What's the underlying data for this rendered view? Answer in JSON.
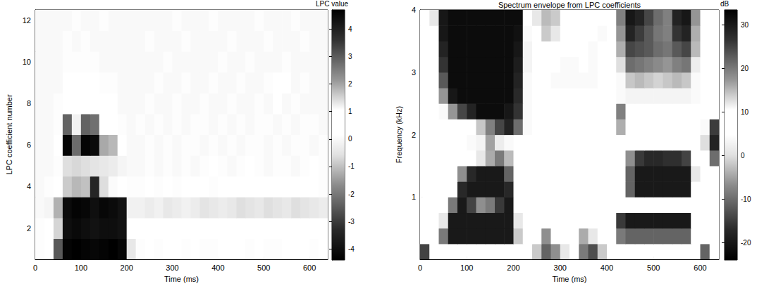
{
  "chart_data": [
    {
      "type": "heatmap",
      "x_label": "Time (ms)",
      "y_label": "LPC coefficient number",
      "xlim": [
        0,
        640
      ],
      "xticks": [
        0,
        100,
        200,
        300,
        400,
        500,
        600
      ],
      "ylim": [
        0.5,
        12.5
      ],
      "yticks": [
        2,
        4,
        6,
        8,
        10,
        12
      ],
      "x_edges": [
        0,
        20,
        40,
        60,
        80,
        100,
        120,
        140,
        160,
        180,
        200,
        220,
        240,
        260,
        280,
        300,
        320,
        340,
        360,
        380,
        400,
        420,
        440,
        460,
        480,
        500,
        520,
        540,
        560,
        580,
        600,
        620,
        640
      ],
      "y_edges": [
        0.5,
        1.5,
        2.5,
        3.5,
        4.5,
        5.5,
        6.5,
        7.5,
        8.5,
        9.5,
        10.5,
        11.5,
        12.5
      ],
      "cells": [
        [
          0.1,
          0.2,
          -2.5,
          -4.3,
          -4.4,
          -4.3,
          -4.2,
          -4.3,
          -4.4,
          -4.2,
          -0.4,
          0.1,
          0.2,
          0.1,
          0.3,
          0.2,
          0.1,
          0.2,
          0.1,
          0.1,
          0.2,
          0.3,
          0.2,
          0.1,
          0.2,
          0.1,
          0.1,
          0.2,
          0.3,
          0.2,
          0.1,
          0.2
        ],
        [
          0.1,
          0.3,
          1.5,
          4.4,
          4.5,
          4.4,
          4.3,
          4.4,
          4.4,
          4.3,
          0.5,
          0.2,
          0.3,
          0.4,
          0.2,
          0.5,
          0.3,
          0.4,
          0.6,
          0.5,
          0.3,
          0.4,
          0.5,
          0.6,
          0.4,
          0.5,
          0.6,
          0.5,
          0.4,
          0.6,
          0.5,
          0.4
        ],
        [
          0,
          -0.1,
          -1.2,
          -4.1,
          -4.3,
          -4.2,
          -4.0,
          -4.2,
          -4.1,
          -3.9,
          -0.2,
          -0.2,
          -0.3,
          -0.2,
          -0.4,
          -0.3,
          -0.2,
          -0.3,
          -0.5,
          -0.4,
          -0.3,
          -0.4,
          -0.6,
          -0.5,
          -0.4,
          -0.6,
          -0.5,
          -0.4,
          -0.6,
          -0.5,
          -0.4,
          -0.3
        ],
        [
          0,
          0.1,
          0.6,
          1.6,
          1.8,
          1.7,
          3.9,
          1.4,
          1.1,
          0.8,
          0.1,
          0.1,
          0.2,
          0.1,
          0.2,
          0.1,
          0.2,
          0.3,
          0.2,
          0.1,
          0.2,
          0.3,
          0.2,
          0.3,
          0.4,
          0.3,
          0.2,
          0.3,
          0.2,
          0.3,
          0.2,
          0.1
        ],
        [
          0,
          0,
          0.1,
          -0.6,
          -0.7,
          -0.6,
          -0.5,
          -0.4,
          -0.3,
          -0.1,
          0,
          0,
          0.1,
          0,
          0.1,
          0,
          0.1,
          0,
          0.1,
          0.2,
          0.1,
          0,
          0.1,
          0.2,
          0.1,
          0,
          0.1,
          0.1,
          0,
          0.1,
          0.2,
          0.1
        ],
        [
          0,
          0,
          0.2,
          -4.3,
          -2.2,
          -4.3,
          -4.1,
          -1.3,
          -1.1,
          0.2,
          0,
          0,
          0.1,
          0,
          0.1,
          0,
          0.1,
          0.1,
          0,
          0.1,
          0,
          0.1,
          0,
          0.1,
          0.1,
          0,
          0.1,
          0,
          0.1,
          0.1,
          0,
          0.1
        ],
        [
          0,
          0,
          0.1,
          2.9,
          1.2,
          2.9,
          2.7,
          0.5,
          0.8,
          0.1,
          0,
          0.1,
          0,
          0.1,
          0,
          0.1,
          0,
          0.1,
          0.1,
          0,
          0.1,
          0,
          0.1,
          0,
          0.1,
          0.1,
          0,
          0.1,
          0,
          0.1,
          0.1,
          0
        ],
        [
          0,
          0,
          0.1,
          0.4,
          0.3,
          0.5,
          0.4,
          0.3,
          0.2,
          0,
          0,
          0,
          0.1,
          0,
          0,
          0.1,
          0,
          0,
          0.1,
          0,
          0,
          0.1,
          0,
          0,
          0.1,
          0,
          0.3,
          0,
          0.1,
          0,
          0,
          0
        ],
        [
          0,
          0,
          0,
          0.2,
          0.2,
          0.3,
          0.2,
          0.1,
          0.1,
          0,
          0,
          0,
          0,
          0.1,
          0,
          0,
          0.1,
          0,
          0,
          0.1,
          0,
          0,
          0.1,
          0,
          0,
          0.1,
          0.4,
          0.2,
          0,
          0.1,
          0,
          0
        ],
        [
          0,
          0,
          0,
          0.1,
          0.1,
          0.1,
          0.1,
          0,
          0,
          0,
          0,
          0,
          0,
          0,
          0.1,
          0,
          0,
          0,
          0,
          0,
          0.1,
          0,
          0,
          0.1,
          0,
          0,
          0,
          0.1,
          0,
          0,
          0,
          0
        ],
        [
          0,
          0,
          0,
          0.1,
          0,
          0.1,
          0,
          0,
          0,
          0,
          0,
          0,
          0.1,
          0,
          0,
          0,
          0.1,
          0,
          0,
          0,
          0,
          0.1,
          0,
          0,
          0,
          0.1,
          0,
          0,
          0,
          0.1,
          0,
          0
        ],
        [
          0,
          0,
          0,
          0,
          0.1,
          0,
          0,
          0.1,
          0,
          0,
          0,
          0,
          0,
          0,
          0,
          0.1,
          0,
          0,
          0,
          0.1,
          0,
          0,
          0,
          0,
          0.1,
          0,
          0,
          0,
          0.1,
          0,
          0,
          0
        ]
      ],
      "colorbar": {
        "label": "LPC value",
        "range": [
          -4.4,
          4.7
        ],
        "ticks": [
          -4,
          -3,
          -2,
          -1,
          0,
          1,
          2,
          3,
          4
        ]
      }
    },
    {
      "type": "heatmap",
      "title": "Spectrum envelope from LPC coefficients",
      "x_label": "Time (ms)",
      "y_label": "Frequency (kHz)",
      "xlim": [
        0,
        640
      ],
      "xticks": [
        0,
        100,
        200,
        300,
        400,
        500,
        600
      ],
      "ylim": [
        0,
        4
      ],
      "yticks": [
        1,
        2,
        3,
        4
      ],
      "x_edges": [
        0,
        20,
        40,
        60,
        80,
        100,
        120,
        140,
        160,
        180,
        200,
        220,
        240,
        260,
        280,
        300,
        320,
        340,
        360,
        380,
        400,
        420,
        440,
        460,
        480,
        500,
        520,
        540,
        560,
        580,
        600,
        620,
        640
      ],
      "y_edges": [
        0,
        0.25,
        0.5,
        0.75,
        1,
        1.25,
        1.5,
        1.75,
        2,
        2.25,
        2.5,
        2.75,
        3,
        3.25,
        3.5,
        3.75,
        4
      ],
      "cells": [
        [
          25,
          10,
          6,
          6,
          6,
          6,
          6,
          6,
          6,
          6,
          6,
          5,
          14,
          22,
          18,
          12,
          6,
          20,
          24,
          14,
          6,
          8,
          8,
          8,
          8,
          8,
          8,
          8,
          8,
          6,
          22,
          10
        ],
        [
          8,
          6,
          20,
          30,
          30,
          30,
          30,
          30,
          30,
          30,
          14,
          5,
          8,
          18,
          10,
          6,
          5,
          16,
          12,
          6,
          5,
          20,
          22,
          22,
          22,
          22,
          22,
          22,
          22,
          8,
          10,
          7
        ],
        [
          6,
          5,
          12,
          30,
          30,
          30,
          30,
          30,
          30,
          30,
          12,
          5,
          5,
          6,
          5,
          5,
          5,
          6,
          5,
          5,
          5,
          26,
          30,
          30,
          30,
          30,
          30,
          30,
          30,
          8,
          6,
          6
        ],
        [
          6,
          5,
          6,
          20,
          30,
          25,
          18,
          20,
          26,
          30,
          10,
          5,
          5,
          5,
          5,
          5,
          5,
          5,
          5,
          5,
          5,
          8,
          8,
          8,
          8,
          8,
          8,
          8,
          8,
          6,
          6,
          6
        ],
        [
          6,
          5,
          6,
          10,
          28,
          30,
          30,
          30,
          30,
          28,
          8,
          5,
          5,
          5,
          5,
          5,
          5,
          5,
          5,
          5,
          5,
          8,
          22,
          30,
          30,
          30,
          30,
          30,
          30,
          10,
          6,
          6
        ],
        [
          6,
          5,
          5,
          6,
          18,
          28,
          30,
          30,
          30,
          22,
          6,
          5,
          5,
          5,
          5,
          5,
          5,
          5,
          5,
          5,
          5,
          6,
          22,
          30,
          30,
          30,
          30,
          30,
          30,
          12,
          6,
          6
        ],
        [
          6,
          5,
          5,
          5,
          8,
          10,
          12,
          16,
          20,
          15,
          6,
          5,
          5,
          5,
          5,
          5,
          5,
          5,
          5,
          5,
          5,
          6,
          18,
          26,
          28,
          28,
          27,
          27,
          25,
          10,
          6,
          -10
        ],
        [
          6,
          5,
          5,
          5,
          5,
          4,
          3,
          -5,
          2,
          4,
          5,
          5,
          5,
          5,
          5,
          5,
          5,
          5,
          5,
          5,
          5,
          5,
          5,
          6,
          6,
          6,
          6,
          6,
          6,
          5,
          0,
          -18
        ],
        [
          6,
          5,
          5,
          5,
          5,
          5,
          -2,
          -8,
          -14,
          -18,
          -10,
          4,
          5,
          5,
          5,
          5,
          5,
          5,
          5,
          5,
          5,
          -4,
          5,
          5,
          5,
          5,
          5,
          5,
          5,
          5,
          4,
          -15
        ],
        [
          6,
          5,
          4,
          -6,
          -14,
          -18,
          -22,
          -22,
          -22,
          -20,
          -16,
          4,
          5,
          5,
          5,
          5,
          5,
          5,
          5,
          5,
          5,
          -8,
          5,
          5,
          5,
          5,
          5,
          5,
          5,
          5,
          5,
          5
        ],
        [
          5,
          5,
          -6,
          -20,
          -22,
          -22,
          -22,
          -22,
          -22,
          -22,
          -17,
          4,
          5,
          5,
          5,
          5,
          5,
          5,
          5,
          5,
          5,
          4,
          3,
          3,
          3,
          3,
          3,
          3,
          3,
          4,
          5,
          5
        ],
        [
          5,
          6,
          -12,
          -22,
          -22,
          -22,
          -22,
          -22,
          -22,
          -22,
          -18,
          4,
          5,
          5,
          4,
          4,
          4,
          4,
          4,
          5,
          5,
          4,
          -2,
          -3,
          -2,
          -1,
          -2,
          -3,
          -2,
          4,
          6,
          7
        ],
        [
          5,
          6,
          -16,
          -22,
          -22,
          -22,
          -22,
          -22,
          -22,
          -22,
          -19,
          3,
          5,
          6,
          5,
          4,
          4,
          5,
          4,
          5,
          5,
          0,
          -10,
          -9,
          -8,
          -7,
          -6,
          -8,
          -9,
          2,
          6,
          8
        ],
        [
          6,
          8,
          -18,
          -22,
          -22,
          -22,
          -22,
          -22,
          -22,
          -22,
          -20,
          3,
          6,
          10,
          9,
          6,
          5,
          5,
          4,
          5,
          6,
          -4,
          -14,
          -13,
          -12,
          -10,
          -9,
          -12,
          -14,
          -3,
          5,
          8
        ],
        [
          8,
          10,
          -20,
          -22,
          -22,
          -22,
          -22,
          -22,
          -22,
          -22,
          -21,
          4,
          10,
          14,
          12,
          8,
          5,
          6,
          5,
          4,
          5,
          -6,
          -18,
          -15,
          -12,
          -9,
          -8,
          -16,
          -18,
          -4,
          6,
          10
        ],
        [
          8,
          12,
          -20,
          -22,
          -22,
          -22,
          -22,
          -22,
          -22,
          -22,
          -22,
          5,
          12,
          15,
          14,
          10,
          6,
          5,
          8,
          6,
          5,
          -8,
          -20,
          -18,
          -14,
          -10,
          -8,
          -18,
          -20,
          -6,
          5,
          8
        ]
      ],
      "colorbar": {
        "label": "dB",
        "range": [
          -24,
          33.5
        ],
        "ticks": [
          -20,
          -10,
          0,
          10,
          20,
          30
        ]
      }
    }
  ]
}
